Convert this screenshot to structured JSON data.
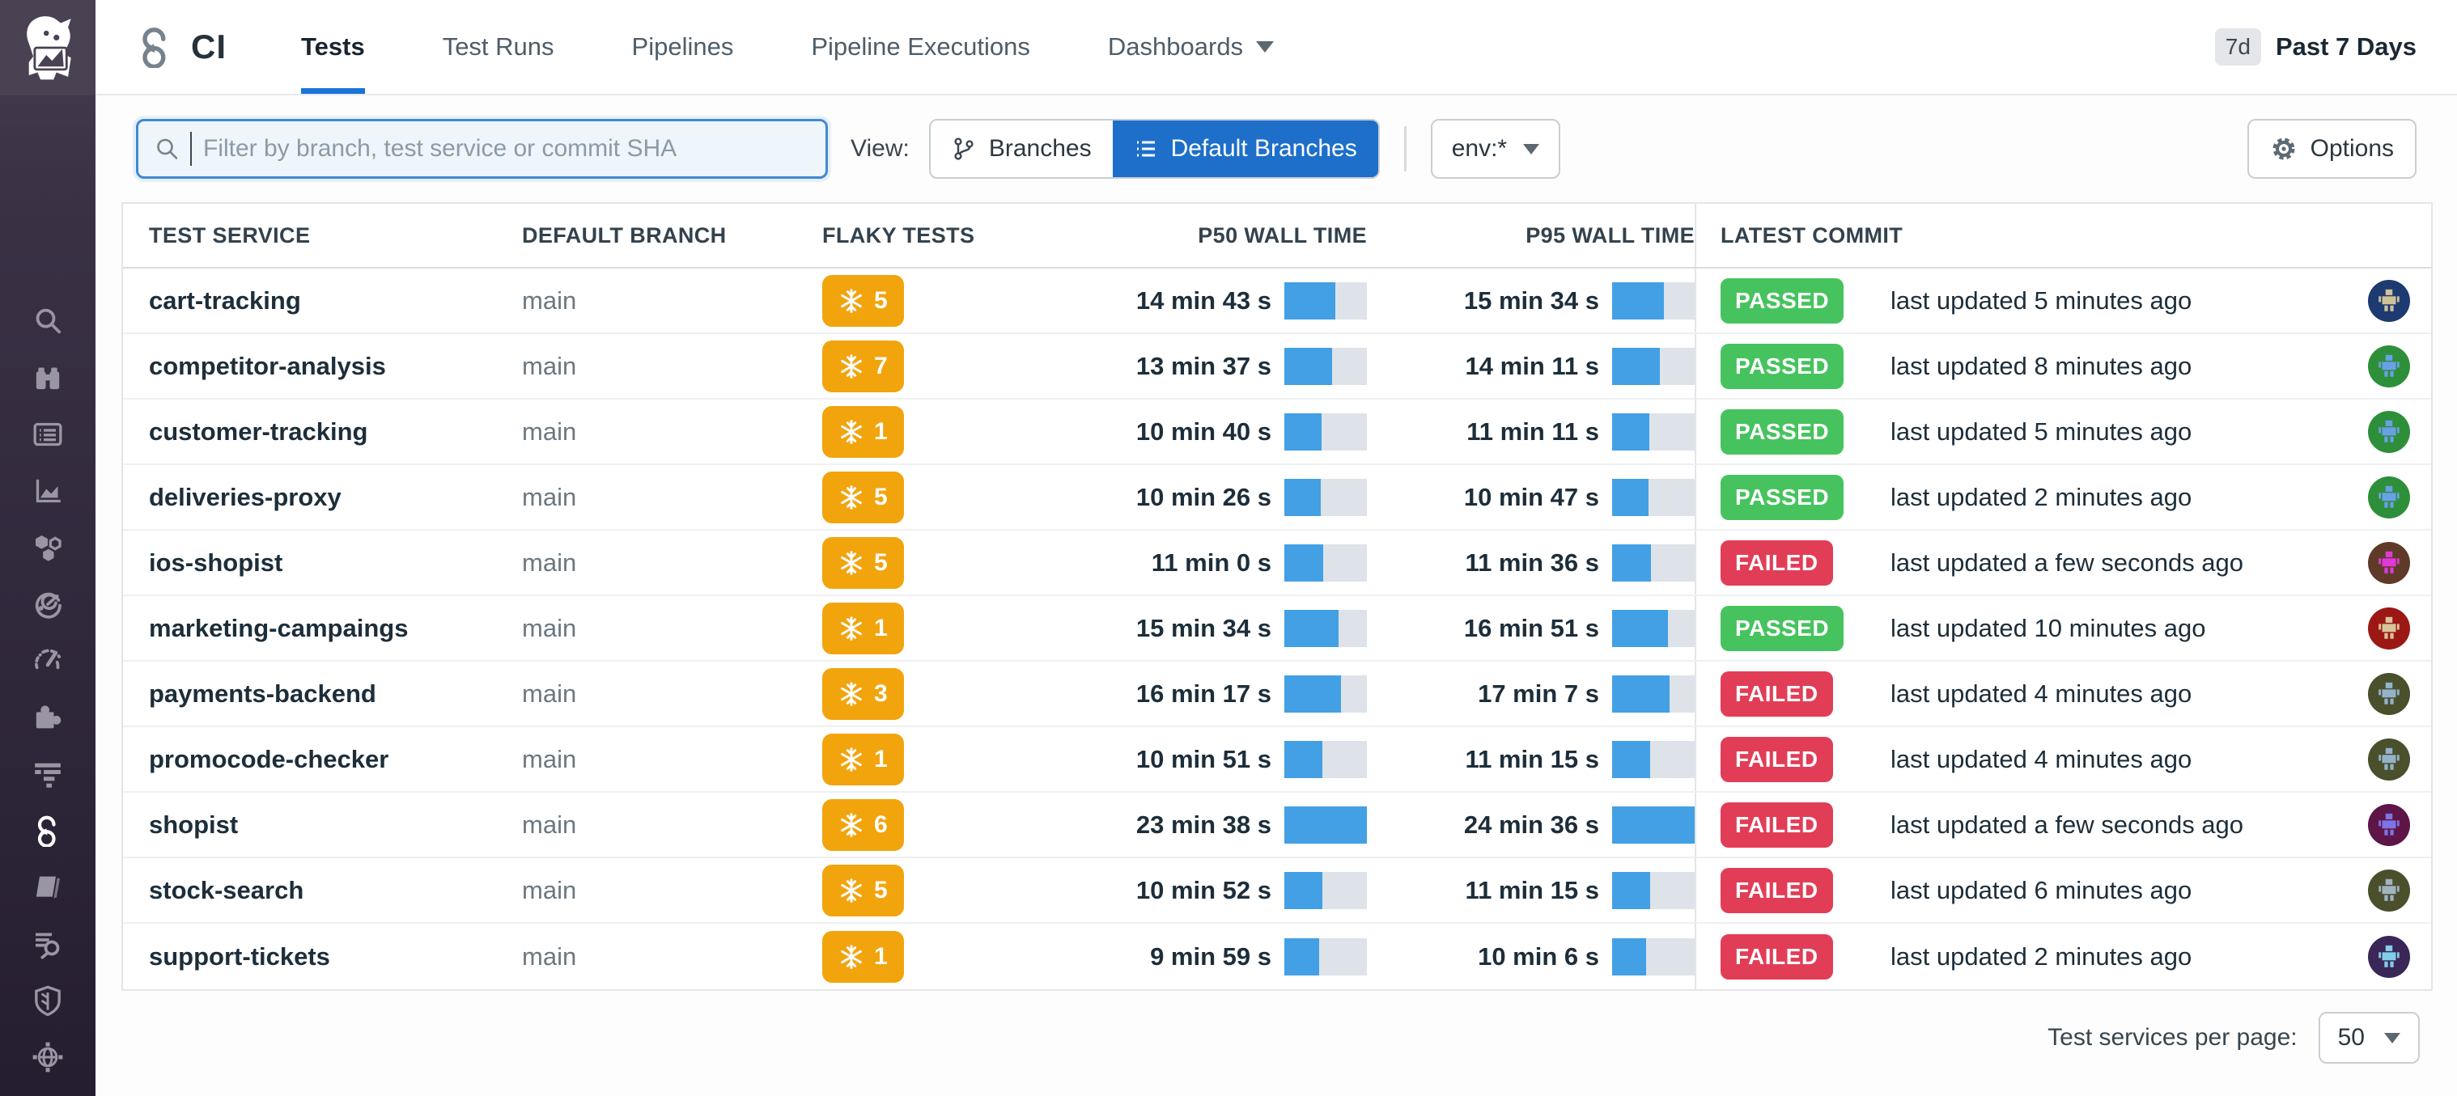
{
  "topnav": {
    "product": "CI",
    "tabs": [
      {
        "label": "Tests",
        "active": true
      },
      {
        "label": "Test Runs",
        "active": false
      },
      {
        "label": "Pipelines",
        "active": false
      },
      {
        "label": "Pipeline Executions",
        "active": false
      },
      {
        "label": "Dashboards",
        "active": false,
        "has_dropdown": true
      }
    ],
    "time_badge": "7d",
    "time_label": "Past 7 Days"
  },
  "sidebar": {
    "icons": [
      "search",
      "watchdog-binoculars",
      "log-explorer",
      "metrics",
      "infrastructure-hexagons",
      "synthetics",
      "dashboards-gauge",
      "integrations-puzzle",
      "apm-traces",
      "ci-pipelines",
      "notebooks",
      "log-search",
      "security-shield",
      "network-globe"
    ],
    "active_icon": "ci-pipelines"
  },
  "filter_bar": {
    "search_placeholder": "Filter by branch, test service or commit SHA",
    "view_label": "View:",
    "view_options": [
      {
        "label": "Branches",
        "icon": "git-branch-icon",
        "active": false
      },
      {
        "label": "Default Branches",
        "icon": "list-icon",
        "active": true
      }
    ],
    "env_filter": "env:*",
    "options_label": "Options"
  },
  "table": {
    "columns": [
      "TEST SERVICE",
      "DEFAULT BRANCH",
      "FLAKY TESTS",
      "P50 WALL TIME",
      "P95 WALL TIME",
      "LATEST COMMIT"
    ],
    "rows": [
      {
        "service": "cart-tracking",
        "branch": "main",
        "flaky": "5",
        "p50": "14 min 43 s",
        "p50_pct": 62,
        "p95": "15 min 34 s",
        "p95_pct": 63,
        "status": "PASSED",
        "updated": "last updated 5 minutes ago",
        "avatar": {
          "bg": "#1d3b70",
          "fg": "#cfc29a"
        }
      },
      {
        "service": "competitor-analysis",
        "branch": "main",
        "flaky": "7",
        "p50": "13 min 37 s",
        "p50_pct": 58,
        "p95": "14 min 11 s",
        "p95_pct": 58,
        "status": "PASSED",
        "updated": "last updated 8 minutes ago",
        "avatar": {
          "bg": "#2e8f3a",
          "fg": "#69a0e8"
        }
      },
      {
        "service": "customer-tracking",
        "branch": "main",
        "flaky": "1",
        "p50": "10 min 40 s",
        "p50_pct": 45,
        "p95": "11 min 11 s",
        "p95_pct": 45,
        "status": "PASSED",
        "updated": "last updated 5 minutes ago",
        "avatar": {
          "bg": "#2e8f3a",
          "fg": "#69a0e8"
        }
      },
      {
        "service": "deliveries-proxy",
        "branch": "main",
        "flaky": "5",
        "p50": "10 min 26 s",
        "p50_pct": 44,
        "p95": "10 min 47 s",
        "p95_pct": 44,
        "status": "PASSED",
        "updated": "last updated 2 minutes ago",
        "avatar": {
          "bg": "#2e8f3a",
          "fg": "#69a0e8"
        }
      },
      {
        "service": "ios-shopist",
        "branch": "main",
        "flaky": "5",
        "p50": "11 min 0 s",
        "p50_pct": 47,
        "p95": "11 min 36 s",
        "p95_pct": 47,
        "status": "FAILED",
        "updated": "last updated a few seconds ago",
        "avatar": {
          "bg": "#5f3a28",
          "fg": "#df3ad8"
        }
      },
      {
        "service": "marketing-campaings",
        "branch": "main",
        "flaky": "1",
        "p50": "15 min 34 s",
        "p50_pct": 66,
        "p95": "16 min 51 s",
        "p95_pct": 68,
        "status": "PASSED",
        "updated": "last updated 10 minutes ago",
        "avatar": {
          "bg": "#9c1815",
          "fg": "#d9c49c"
        }
      },
      {
        "service": "payments-backend",
        "branch": "main",
        "flaky": "3",
        "p50": "16 min 17 s",
        "p50_pct": 69,
        "p95": "17 min 7 s",
        "p95_pct": 70,
        "status": "FAILED",
        "updated": "last updated 4 minutes ago",
        "avatar": {
          "bg": "#4a4f2c",
          "fg": "#93b3cc"
        }
      },
      {
        "service": "promocode-checker",
        "branch": "main",
        "flaky": "1",
        "p50": "10 min 51 s",
        "p50_pct": 46,
        "p95": "11 min 15 s",
        "p95_pct": 46,
        "status": "FAILED",
        "updated": "last updated 4 minutes ago",
        "avatar": {
          "bg": "#4a4f2c",
          "fg": "#93b3cc"
        }
      },
      {
        "service": "shopist",
        "branch": "main",
        "flaky": "6",
        "p50": "23 min 38 s",
        "p50_pct": 100,
        "p95": "24 min 36 s",
        "p95_pct": 100,
        "status": "FAILED",
        "updated": "last updated a few seconds ago",
        "avatar": {
          "bg": "#5e1547",
          "fg": "#7d74e6"
        }
      },
      {
        "service": "stock-search",
        "branch": "main",
        "flaky": "5",
        "p50": "10 min 52 s",
        "p50_pct": 46,
        "p95": "11 min 15 s",
        "p95_pct": 46,
        "status": "FAILED",
        "updated": "last updated 6 minutes ago",
        "avatar": {
          "bg": "#4a4f2c",
          "fg": "#9fb4c0"
        }
      },
      {
        "service": "support-tickets",
        "branch": "main",
        "flaky": "1",
        "p50": "9 min 59 s",
        "p50_pct": 42,
        "p95": "10 min 6 s",
        "p95_pct": 41,
        "status": "FAILED",
        "updated": "last updated 2 minutes ago",
        "avatar": {
          "bg": "#3b2757",
          "fg": "#82cdea"
        }
      }
    ]
  },
  "pagination": {
    "label": "Test services per page:",
    "value": "50"
  },
  "colors": {
    "accent_blue": "#1d6fc9",
    "bar_blue": "#43a0e4",
    "flaky_orange": "#f2a40d",
    "passed_green": "#46c35e",
    "failed_red": "#e23d57",
    "sidebar_dark": "#2c2437"
  }
}
